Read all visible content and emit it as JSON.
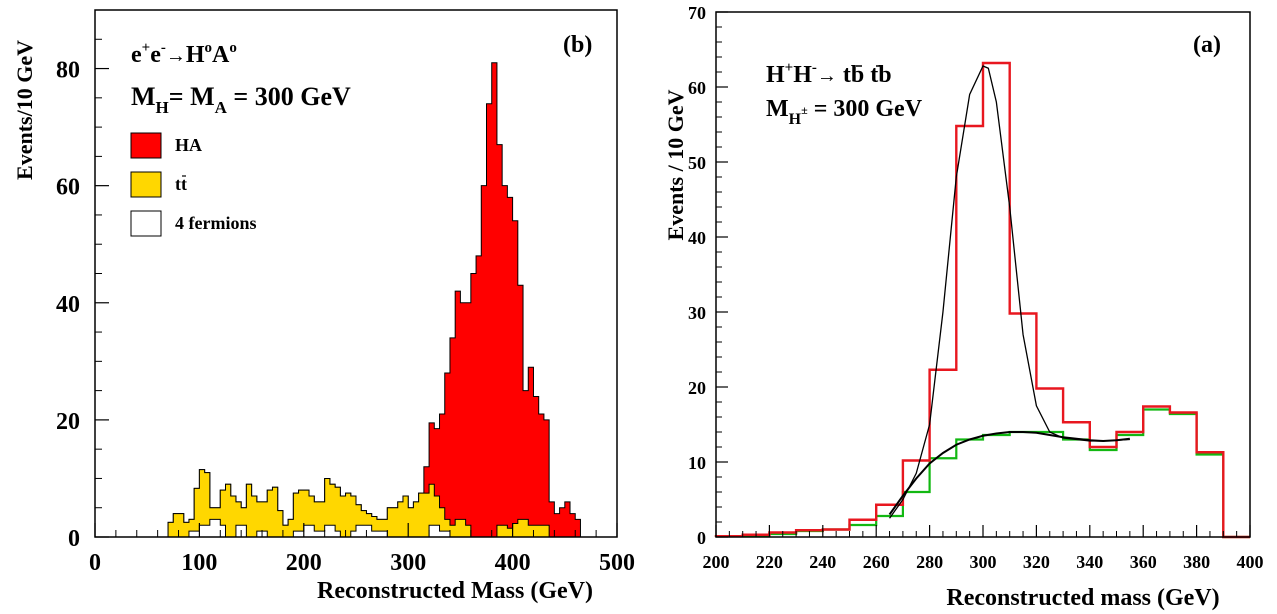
{
  "chart_data": [
    {
      "type": "bar",
      "panel_label": "(b)",
      "process": {
        "base": "e",
        "sup1": "+",
        "mid": "e",
        "sup2": "-",
        "arrow": "→",
        "h": "H",
        "sup3": "o",
        "a": "A",
        "sup4": "o"
      },
      "mass_line": {
        "m1": "M",
        "sub1": "H",
        "eq1": "= M",
        "sub2": "A",
        "rest": " = 300 GeV"
      },
      "xlabel": "Reconstructed Mass (GeV)",
      "ylabel": "Events/10 GeV",
      "xlim": [
        0,
        500
      ],
      "ylim": [
        0,
        90
      ],
      "xticks": [
        "0",
        "100",
        "200",
        "300",
        "400",
        "500"
      ],
      "yticks": [
        "0",
        "20",
        "40",
        "60",
        "80"
      ],
      "legend": [
        "HA",
        "tt",
        "4 fermions"
      ],
      "legend_placement": "upper-left",
      "colors": {
        "HA": "#ff0000",
        "tt": "#ffd700",
        "fermions": "#ffffff"
      },
      "bin_edges_start": 70,
      "bin_width": 5,
      "series": [
        {
          "name": "4 fermions",
          "values": [
            0,
            0,
            0,
            0,
            1,
            1,
            2,
            2,
            3,
            3,
            2,
            0,
            0,
            2,
            2,
            0,
            0,
            1,
            1,
            0,
            0,
            0,
            0,
            0,
            1,
            1,
            2,
            2,
            1,
            1,
            2,
            2,
            1,
            0,
            0,
            1,
            2,
            2,
            2,
            1,
            1,
            1,
            0,
            0,
            0,
            0,
            0,
            0,
            0,
            0,
            2,
            2,
            1,
            1,
            0,
            0,
            0,
            0,
            0,
            0,
            0,
            0,
            0,
            0,
            0,
            0,
            0,
            0,
            0,
            0,
            0,
            0,
            0,
            0,
            0,
            0,
            0,
            0,
            0,
            0
          ]
        },
        {
          "name": "tt",
          "values": [
            2.5,
            4,
            4,
            2.5,
            3,
            8.3,
            11.5,
            11,
            5,
            5,
            8,
            9,
            7,
            6,
            5,
            9,
            7,
            6,
            6,
            8,
            8.5,
            4.5,
            2,
            3,
            7.5,
            8,
            8,
            7,
            6,
            6,
            10,
            9,
            8.5,
            7,
            7.5,
            7,
            5.5,
            4.5,
            4,
            3.5,
            3,
            3,
            5,
            5,
            6,
            7,
            5,
            6,
            7.5,
            7.5,
            9,
            7,
            5,
            3,
            2,
            3,
            3,
            2,
            0,
            0,
            0,
            0,
            0,
            2,
            2,
            1.5,
            2.3,
            3,
            3,
            2,
            2,
            2,
            2,
            0,
            0,
            0,
            0,
            0,
            0,
            0
          ]
        },
        {
          "name": "HA",
          "values": [
            2.5,
            4,
            4,
            2.5,
            3,
            8.3,
            11.5,
            11,
            5,
            5,
            8,
            9,
            7,
            6,
            5,
            9,
            7,
            6,
            6,
            8,
            8.5,
            4.5,
            2,
            3,
            7.5,
            8,
            8,
            7,
            6,
            6,
            10,
            9,
            8.5,
            7,
            7.5,
            7,
            5.5,
            4.5,
            4,
            3.5,
            3,
            3,
            5,
            5,
            6,
            7,
            5,
            6,
            7.5,
            12,
            19.5,
            18.5,
            21,
            28,
            34,
            42,
            40,
            40,
            45,
            48,
            60,
            74,
            81,
            67,
            60,
            58,
            54,
            43,
            25,
            29,
            24,
            21,
            20,
            6,
            4,
            5,
            6,
            4,
            3,
            0
          ]
        }
      ]
    },
    {
      "type": "line",
      "panel_label": "(a)",
      "process": {
        "h1": "H",
        "sup1": "+",
        "h2": "H",
        "sup2": "-",
        "arrow": "→",
        "decay": "tb tb"
      },
      "mass_line": {
        "m": "M",
        "sub": "H",
        "subsup": "±",
        "rest": " = 300 GeV"
      },
      "xlabel": "Reconstructed mass (GeV)",
      "ylabel": "Events / 10 GeV",
      "xlim": [
        200,
        400
      ],
      "ylim": [
        0,
        70
      ],
      "xticks": [
        "200",
        "220",
        "240",
        "260",
        "280",
        "300",
        "320",
        "340",
        "360",
        "380",
        "400"
      ],
      "yticks": [
        "0",
        "10",
        "20",
        "30",
        "40",
        "50",
        "60",
        "70"
      ],
      "colors": {
        "signal": "#e8171f",
        "background": "#12b812",
        "fit": "#000000"
      },
      "bin_edges": [
        200,
        210,
        220,
        230,
        240,
        250,
        260,
        270,
        280,
        290,
        300,
        310,
        320,
        330,
        340,
        350,
        360,
        370,
        380,
        390,
        400
      ],
      "series": [
        {
          "name": "",
          "values": [
            0.1,
            0.3,
            0.6,
            0.9,
            1.0,
            2.3,
            4.3,
            10.2,
            22.3,
            54.8,
            63.2,
            29.8,
            19.8,
            15.3,
            12.0,
            14.0,
            17.4,
            16.6,
            11.3,
            0
          ]
        },
        {
          "name": "",
          "values": [
            0.1,
            0.2,
            0.4,
            0.8,
            1.0,
            1.6,
            2.8,
            6.0,
            10.5,
            13.0,
            13.6,
            14.0,
            14.0,
            13.0,
            11.6,
            13.6,
            17.0,
            16.4,
            11.0,
            0
          ]
        }
      ],
      "fit_total": {
        "x": [
          265,
          270,
          275,
          280,
          285,
          290,
          295,
          300,
          302,
          305,
          310,
          315,
          320,
          325,
          330,
          335,
          340,
          345,
          350,
          355
        ],
        "y": [
          2.5,
          5.0,
          8.5,
          15.0,
          30.0,
          48.0,
          59.0,
          62.8,
          62.5,
          58.0,
          44.0,
          27.0,
          17.5,
          14.0,
          13.2,
          13.0,
          12.8,
          12.8,
          12.9,
          13.0
        ]
      },
      "fit_background": {
        "x": [
          265,
          270,
          275,
          280,
          285,
          290,
          295,
          300,
          305,
          310,
          315,
          320,
          325,
          330,
          335,
          340,
          345,
          350,
          355
        ],
        "y": [
          3.0,
          5.5,
          7.8,
          9.8,
          11.2,
          12.3,
          13.0,
          13.5,
          13.8,
          14.0,
          14.0,
          13.9,
          13.6,
          13.3,
          13.1,
          12.9,
          12.8,
          12.9,
          13.1
        ]
      }
    }
  ]
}
